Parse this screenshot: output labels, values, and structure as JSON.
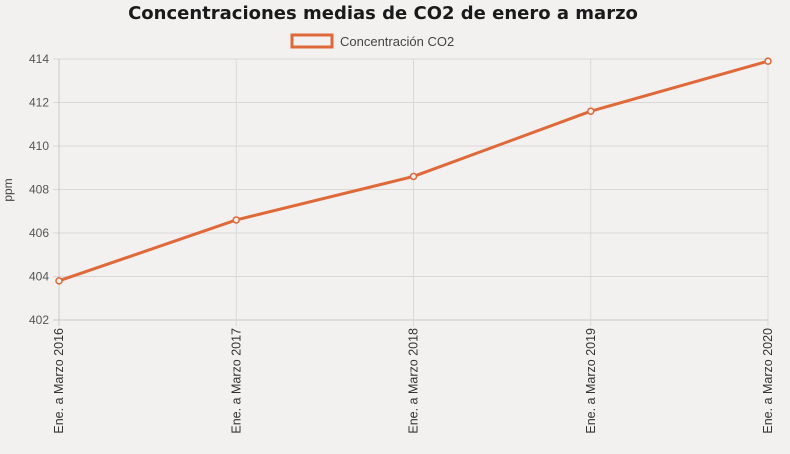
{
  "chart_data": {
    "type": "line",
    "title": "Concentraciones medias de CO2 de enero a marzo",
    "xlabel": "",
    "ylabel": "ppm",
    "categories": [
      "Ene. a Marzo 2016",
      "Ene. a Marzo 2017",
      "Ene. a Marzo 2018",
      "Ene. a Marzo 2019",
      "Ene. a Marzo 2020"
    ],
    "series": [
      {
        "name": "Concentración CO2",
        "values": [
          403.8,
          406.6,
          408.6,
          411.6,
          413.9
        ],
        "color": "#e0693a"
      }
    ],
    "ylim": [
      402,
      414
    ],
    "yticks": [
      "402",
      "404",
      "406",
      "408",
      "410",
      "412",
      "414"
    ],
    "grid": true,
    "legend_position": "top-center"
  },
  "colors": {
    "background": "#f2f1f0",
    "series": "#e0693a",
    "grid": "#d9d8d7"
  }
}
